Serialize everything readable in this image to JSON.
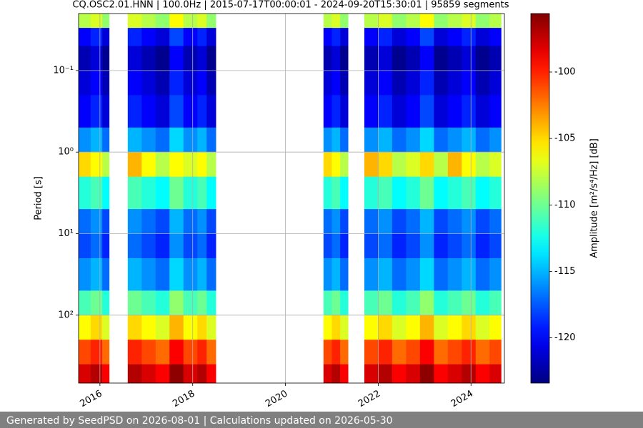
{
  "chart_data": {
    "type": "heatmap",
    "title": "CQ.OSC2.01.HNN | 100.0Hz | 2015-07-17T00:00:01 - 2024-09-20T15:30:01 | 95859 segments",
    "y_label": "Period [s]",
    "colorbar_label": "Amplitude [m²/s⁴/Hz] [dB]",
    "xlim": [
      2015.54,
      2024.72
    ],
    "xticks": [
      2016,
      2018,
      2020,
      2022,
      2024
    ],
    "ylim": [
      0.02,
      680
    ],
    "y_log": true,
    "y_inverted": true,
    "yticks": [
      {
        "value": 0.1,
        "label": "10⁻¹"
      },
      {
        "value": 1,
        "label": "10⁰"
      },
      {
        "value": 10,
        "label": "10¹"
      },
      {
        "value": 100,
        "label": "10²"
      }
    ],
    "grid": true,
    "colormap": "jet",
    "clim": [
      -123.4,
      -95.6
    ],
    "cticks": [
      -100,
      -105,
      -110,
      -115,
      -120
    ],
    "x_edges": [
      2015.54,
      2015.8,
      2016.05,
      2016.2,
      2016.6,
      2016.9,
      2017.2,
      2017.5,
      2017.8,
      2018.1,
      2018.3,
      2018.5,
      2020.82,
      2021.0,
      2021.18,
      2021.35,
      2021.7,
      2022.0,
      2022.3,
      2022.6,
      2022.9,
      2023.2,
      2023.5,
      2023.8,
      2024.1,
      2024.4,
      2024.65
    ],
    "y_edges": [
      0.02,
      0.03,
      0.05,
      0.1,
      0.2,
      0.5,
      1,
      2,
      5,
      10,
      20,
      50,
      100,
      200,
      400,
      680
    ],
    "z": [
      [
        -108,
        -107,
        -109,
        null,
        -107,
        -108,
        -109,
        -106,
        -108,
        -107,
        -109,
        null,
        -108,
        -107,
        -109,
        null,
        -108,
        -107,
        -109,
        -108,
        -106,
        -109,
        -108,
        -107,
        -109,
        -108
      ],
      [
        -120,
        -119,
        -121,
        null,
        -119,
        -120,
        -121,
        -118,
        -120,
        -119,
        -121,
        null,
        -120,
        -119,
        -121,
        null,
        -120,
        -119,
        -121,
        -120,
        -118,
        -121,
        -120,
        -119,
        -121,
        -120
      ],
      [
        -122,
        -121,
        -123,
        null,
        -121,
        -122,
        -123,
        -120,
        -122,
        -121,
        -123,
        null,
        -122,
        -121,
        -123,
        null,
        -122,
        -121,
        -123,
        -122,
        -120,
        -123,
        -122,
        -121,
        -123,
        -122
      ],
      [
        -121,
        -120,
        -122,
        null,
        -120,
        -121,
        -122,
        -119,
        -121,
        -120,
        -122,
        null,
        -121,
        -120,
        -122,
        null,
        -121,
        -120,
        -122,
        -121,
        -119,
        -122,
        -121,
        -120,
        -122,
        -121
      ],
      [
        -120,
        -119,
        -121,
        null,
        -119,
        -120,
        -121,
        -118,
        -120,
        -119,
        -121,
        null,
        -120,
        -119,
        -121,
        null,
        -120,
        -119,
        -121,
        -120,
        -118,
        -121,
        -120,
        -119,
        -121,
        -120
      ],
      [
        -116,
        -115,
        -117,
        null,
        -115,
        -116,
        -117,
        -114,
        -116,
        -115,
        -117,
        null,
        -116,
        -115,
        -117,
        null,
        -116,
        -115,
        -117,
        -116,
        -114,
        -117,
        -116,
        -115,
        -117,
        -116
      ],
      [
        -105,
        -106,
        -108,
        null,
        -104,
        -106,
        -108,
        -106,
        -107,
        -106,
        -108,
        null,
        -105,
        -106,
        -108,
        null,
        -104,
        -105,
        -108,
        -107,
        -105,
        -108,
        -104,
        -106,
        -108,
        -107
      ],
      [
        -112,
        -111,
        -113,
        null,
        -111,
        -112,
        -113,
        -110,
        -112,
        -111,
        -113,
        null,
        -112,
        -111,
        -113,
        null,
        -112,
        -111,
        -113,
        -112,
        -110,
        -113,
        -112,
        -111,
        -113,
        -112
      ],
      [
        -117,
        -116,
        -118,
        null,
        -116,
        -117,
        -118,
        -115,
        -117,
        -116,
        -118,
        null,
        -117,
        -116,
        -118,
        null,
        -117,
        -116,
        -118,
        -117,
        -115,
        -118,
        -117,
        -116,
        -118,
        -117
      ],
      [
        -118,
        -117,
        -119,
        null,
        -117,
        -118,
        -119,
        -116,
        -118,
        -117,
        -119,
        null,
        -118,
        -117,
        -119,
        null,
        -118,
        -117,
        -119,
        -118,
        -116,
        -119,
        -118,
        -117,
        -119,
        -118
      ],
      [
        -116,
        -115,
        -117,
        null,
        -115,
        -116,
        -117,
        -114,
        -116,
        -115,
        -117,
        null,
        -116,
        -115,
        -117,
        null,
        -116,
        -115,
        -117,
        -116,
        -114,
        -117,
        -116,
        -115,
        -117,
        -116
      ],
      [
        -111,
        -110,
        -112,
        null,
        -110,
        -111,
        -112,
        -109,
        -111,
        -110,
        -112,
        null,
        -111,
        -110,
        -112,
        null,
        -111,
        -110,
        -112,
        -111,
        -109,
        -112,
        -111,
        -110,
        -112,
        -111
      ],
      [
        -106,
        -105,
        -107,
        null,
        -105,
        -106,
        -107,
        -104,
        -106,
        -105,
        -107,
        null,
        -106,
        -105,
        -107,
        null,
        -106,
        -105,
        -107,
        -106,
        -104,
        -107,
        -106,
        -105,
        -107,
        -106
      ],
      [
        -101,
        -100,
        -102,
        null,
        -100,
        -101,
        -102,
        -99,
        -101,
        -100,
        -102,
        null,
        -101,
        -100,
        -102,
        null,
        -101,
        -100,
        -102,
        -101,
        -99,
        -102,
        -101,
        -100,
        -102,
        -101
      ],
      [
        -98,
        -97,
        -99,
        null,
        -97,
        -98,
        -99,
        -96,
        -98,
        -97,
        -99,
        null,
        -98,
        -97,
        -99,
        null,
        -98,
        -97,
        -99,
        -98,
        -96,
        -99,
        -98,
        -97,
        -99,
        -98
      ]
    ]
  },
  "footer": "Generated by SeedPSD on 2026-08-01 | Calculations updated on 2026-05-30"
}
